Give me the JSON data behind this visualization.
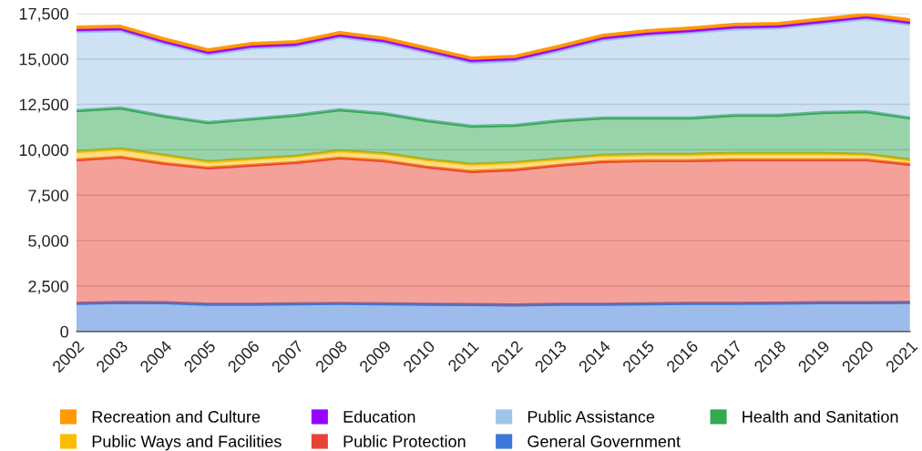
{
  "chart_data": {
    "type": "area",
    "stacked": true,
    "categories": [
      "2002",
      "2003",
      "2004",
      "2005",
      "2006",
      "2007",
      "2008",
      "2009",
      "2010",
      "2011",
      "2012",
      "2013",
      "2014",
      "2015",
      "2016",
      "2017",
      "2018",
      "2019",
      "2020",
      "2021"
    ],
    "series": [
      {
        "name": "General Government",
        "color": "#3c78d8",
        "values": [
          1550,
          1600,
          1580,
          1500,
          1500,
          1520,
          1540,
          1520,
          1500,
          1480,
          1460,
          1500,
          1500,
          1520,
          1550,
          1550,
          1560,
          1580,
          1580,
          1600
        ]
      },
      {
        "name": "Public Protection",
        "color": "#ea4335",
        "values": [
          7900,
          8000,
          7670,
          7500,
          7650,
          7780,
          8010,
          7880,
          7550,
          7320,
          7440,
          7650,
          7850,
          7880,
          7850,
          7900,
          7890,
          7870,
          7870,
          7600
        ]
      },
      {
        "name": "Public Ways and Facilities",
        "color": "#fbbc04",
        "values": [
          450,
          450,
          450,
          350,
          350,
          350,
          400,
          400,
          400,
          400,
          400,
          350,
          350,
          350,
          350,
          350,
          350,
          350,
          300,
          250
        ]
      },
      {
        "name": "Health and Sanitation",
        "color": "#34a853",
        "values": [
          2250,
          2250,
          2150,
          2150,
          2200,
          2250,
          2250,
          2200,
          2150,
          2100,
          2050,
          2100,
          2050,
          2000,
          2000,
          2100,
          2100,
          2250,
          2350,
          2300
        ]
      },
      {
        "name": "Public Assistance",
        "color": "#9fc5e8",
        "values": [
          4350,
          4250,
          4000,
          3750,
          3900,
          3800,
          4000,
          3900,
          3750,
          3500,
          3550,
          3850,
          4300,
          4550,
          4700,
          4750,
          4800,
          4900,
          5100,
          5150
        ]
      },
      {
        "name": "Education",
        "color": "#9900ff",
        "values": [
          130,
          130,
          130,
          130,
          130,
          130,
          130,
          130,
          130,
          130,
          130,
          130,
          130,
          130,
          130,
          130,
          130,
          130,
          130,
          130
        ]
      },
      {
        "name": "Recreation and Culture",
        "color": "#ff9900",
        "values": [
          120,
          120,
          120,
          120,
          120,
          120,
          120,
          120,
          120,
          120,
          120,
          120,
          120,
          120,
          120,
          120,
          120,
          120,
          120,
          120
        ]
      }
    ],
    "ylim": [
      0,
      17500
    ],
    "yticks": [
      {
        "value": 0,
        "label": "0"
      },
      {
        "value": 2500,
        "label": "2,500"
      },
      {
        "value": 5000,
        "label": "5,000"
      },
      {
        "value": 7500,
        "label": "7,500"
      },
      {
        "value": 10000,
        "label": "10,000"
      },
      {
        "value": 12500,
        "label": "12,500"
      },
      {
        "value": 15000,
        "label": "15,000"
      },
      {
        "value": 17500,
        "label": "17,500"
      }
    ],
    "grid": "y",
    "legend": "bottom"
  }
}
